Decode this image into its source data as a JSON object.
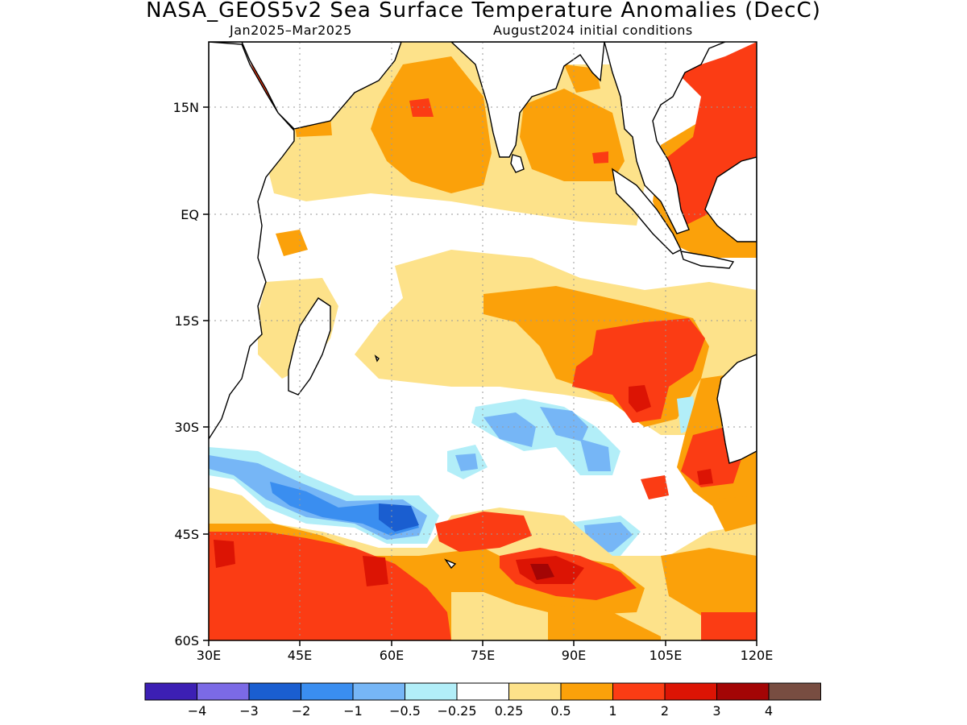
{
  "title": "NASA_GEOS5v2 Sea Surface Temperature Anomalies (DecC)",
  "subtitle_left": "Jan2025–Mar2025",
  "subtitle_right": "August2024 initial conditions",
  "map": {
    "region": "Indian Ocean",
    "lon_range": [
      30,
      120
    ],
    "lat_range": [
      -60,
      24
    ],
    "grid": true,
    "lat_labels": [
      "15N",
      "EQ",
      "15S",
      "30S",
      "45S",
      "60S"
    ],
    "lon_labels": [
      "30E",
      "45E",
      "60E",
      "75E",
      "90E",
      "105E",
      "120E"
    ]
  },
  "colorbar": {
    "colors": [
      "#3c1fb4",
      "#7b6ae6",
      "#1a5ed0",
      "#3a8ef0",
      "#76b6f6",
      "#b2eef8",
      "#ffffff",
      "#fde28a",
      "#fba10a",
      "#fb3c14",
      "#dc1404",
      "#a30505",
      "#784d41"
    ],
    "labels": [
      "−4",
      "−3",
      "−2",
      "−1",
      "−0.5",
      "−0.25",
      "0.25",
      "0.5",
      "1",
      "2",
      "3",
      "4"
    ]
  }
}
